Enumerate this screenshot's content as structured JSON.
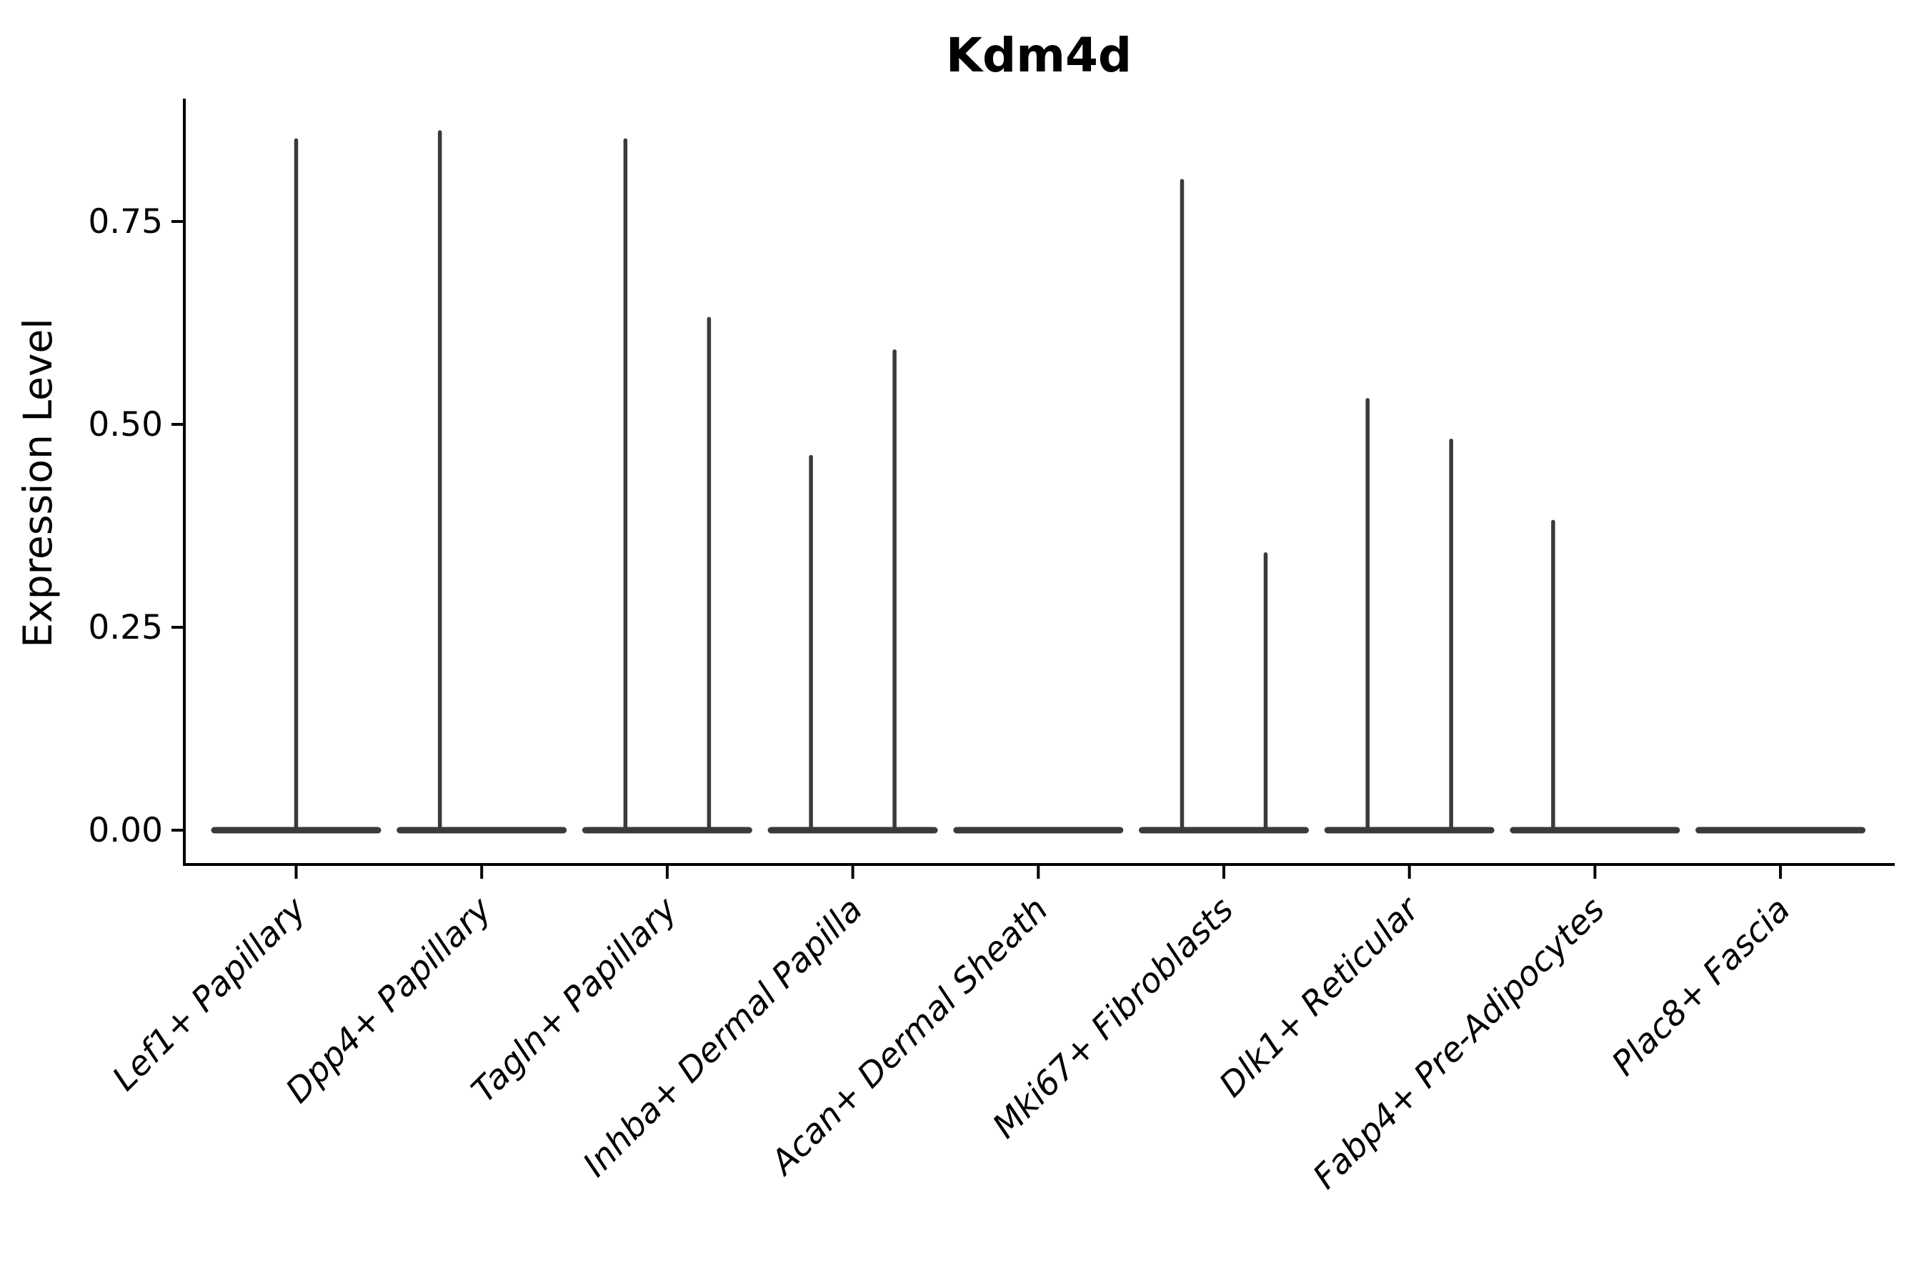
{
  "colors": {
    "violin_stroke": "#3a3a3a",
    "axis": "#000000",
    "text": "#000000",
    "background": "#ffffff"
  },
  "chart_data": {
    "type": "violin",
    "title": "Kdm4d",
    "xlabel": "",
    "ylabel": "Expression Level",
    "ylim": [
      -0.04,
      0.9
    ],
    "yticks": [
      0,
      0.25,
      0.5,
      0.75
    ],
    "ytick_labels": [
      "0.00",
      "0.25",
      "0.50",
      "0.75"
    ],
    "grid": false,
    "legend": null,
    "categories": [
      "Lef1+ Papillary",
      "Dpp4+ Papillary",
      "Tagln+ Papillary",
      "Inhba+ Dermal Papilla",
      "Acan+ Dermal Sheath",
      "Mki67+ Fibroblasts",
      "Dlk1+ Reticular",
      "Fabp4+ Pre-Adipocytes",
      "Plac8+ Fascia"
    ],
    "violins": [
      {
        "category": "Lef1+ Papillary",
        "baseline_expression": 0,
        "peaks": [
          {
            "position": "center",
            "max_expression": 0.85
          }
        ]
      },
      {
        "category": "Dpp4+ Papillary",
        "baseline_expression": 0,
        "peaks": [
          {
            "position": "left",
            "max_expression": 0.86
          }
        ]
      },
      {
        "category": "Tagln+ Papillary",
        "baseline_expression": 0,
        "peaks": [
          {
            "position": "left",
            "max_expression": 0.85
          },
          {
            "position": "right",
            "max_expression": 0.63
          }
        ]
      },
      {
        "category": "Inhba+ Dermal Papilla",
        "baseline_expression": 0,
        "peaks": [
          {
            "position": "left",
            "max_expression": 0.46
          },
          {
            "position": "right",
            "max_expression": 0.59
          }
        ]
      },
      {
        "category": "Acan+ Dermal Sheath",
        "baseline_expression": 0,
        "peaks": []
      },
      {
        "category": "Mki67+ Fibroblasts",
        "baseline_expression": 0,
        "peaks": [
          {
            "position": "left",
            "max_expression": 0.8
          },
          {
            "position": "right",
            "max_expression": 0.34
          }
        ]
      },
      {
        "category": "Dlk1+ Reticular",
        "baseline_expression": 0,
        "peaks": [
          {
            "position": "left",
            "max_expression": 0.53
          },
          {
            "position": "right",
            "max_expression": 0.48
          }
        ]
      },
      {
        "category": "Fabp4+ Pre-Adipocytes",
        "baseline_expression": 0,
        "peaks": [
          {
            "position": "left",
            "max_expression": 0.38
          }
        ]
      },
      {
        "category": "Plac8+ Fascia",
        "baseline_expression": 0,
        "peaks": []
      }
    ]
  }
}
